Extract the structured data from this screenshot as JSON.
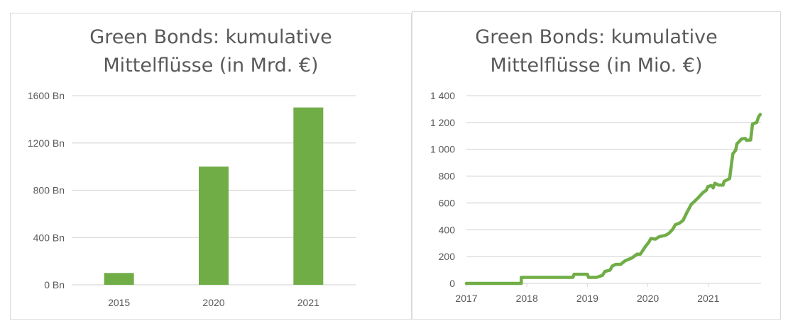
{
  "colors": {
    "series": "#70ad47",
    "grid": "#d9d9d9",
    "text": "#595959"
  },
  "chart_data": [
    {
      "type": "bar",
      "title": [
        "Green Bonds: kumulative",
        "Mittelflüsse (in Mrd. €)"
      ],
      "categories": [
        "2015",
        "2020",
        "2021"
      ],
      "values": [
        100,
        1000,
        1500
      ],
      "yticks": [
        "0 Bn",
        "400 Bn",
        "800 Bn",
        "1200 Bn",
        "1600 Bn"
      ],
      "ylim": [
        0,
        1600
      ],
      "grid": true,
      "legend": "none"
    },
    {
      "type": "line",
      "title": [
        "Green Bonds: kumulative",
        "Mittelflüsse (in Mio. €)"
      ],
      "xticks": [
        "2017",
        "2018",
        "2019",
        "2020",
        "2021"
      ],
      "yticks": [
        "0",
        "200",
        "400",
        "600",
        "800",
        "1 000",
        "1 200",
        "1 400"
      ],
      "ylim": [
        0,
        1400
      ],
      "grid": true,
      "legend": "none",
      "points": [
        [
          "2017-01-01",
          0
        ],
        [
          "2017-11-28",
          0
        ],
        [
          "2017-11-28",
          45
        ],
        [
          "2018-10-05",
          45
        ],
        [
          "2018-10-12",
          68
        ],
        [
          "2019-01-01",
          68
        ],
        [
          "2019-01-08",
          45
        ],
        [
          "2019-02-25",
          45
        ],
        [
          "2019-04-01",
          60
        ],
        [
          "2019-04-16",
          90
        ],
        [
          "2019-05-15",
          98
        ],
        [
          "2019-05-30",
          130
        ],
        [
          "2019-06-21",
          142
        ],
        [
          "2019-07-19",
          142
        ],
        [
          "2019-08-15",
          168
        ],
        [
          "2019-09-27",
          190
        ],
        [
          "2019-10-27",
          218
        ],
        [
          "2019-11-17",
          218
        ],
        [
          "2019-12-16",
          274
        ],
        [
          "2020-01-08",
          309
        ],
        [
          "2020-01-19",
          335
        ],
        [
          "2020-02-17",
          330
        ],
        [
          "2020-03-10",
          349
        ],
        [
          "2020-04-16",
          358
        ],
        [
          "2020-05-08",
          375
        ],
        [
          "2020-05-30",
          405
        ],
        [
          "2020-06-14",
          437
        ],
        [
          "2020-07-09",
          449
        ],
        [
          "2020-07-31",
          470
        ],
        [
          "2020-08-22",
          525
        ],
        [
          "2020-09-20",
          590
        ],
        [
          "2020-10-05",
          607
        ],
        [
          "2020-11-03",
          642
        ],
        [
          "2020-11-29",
          677
        ],
        [
          "2020-12-20",
          695
        ],
        [
          "2020-12-28",
          721
        ],
        [
          "2021-01-19",
          730
        ],
        [
          "2021-01-30",
          712
        ],
        [
          "2021-02-10",
          747
        ],
        [
          "2021-03-03",
          733
        ],
        [
          "2021-03-29",
          733
        ],
        [
          "2021-04-05",
          761
        ],
        [
          "2021-05-08",
          782
        ],
        [
          "2021-05-15",
          853
        ],
        [
          "2021-05-27",
          967
        ],
        [
          "2021-06-14",
          993
        ],
        [
          "2021-06-21",
          1040
        ],
        [
          "2021-07-19",
          1077
        ],
        [
          "2021-08-11",
          1081
        ],
        [
          "2021-08-18",
          1067
        ],
        [
          "2021-09-13",
          1070
        ],
        [
          "2021-09-24",
          1189
        ],
        [
          "2021-10-19",
          1200
        ],
        [
          "2021-10-30",
          1242
        ],
        [
          "2021-11-10",
          1260
        ]
      ]
    }
  ]
}
